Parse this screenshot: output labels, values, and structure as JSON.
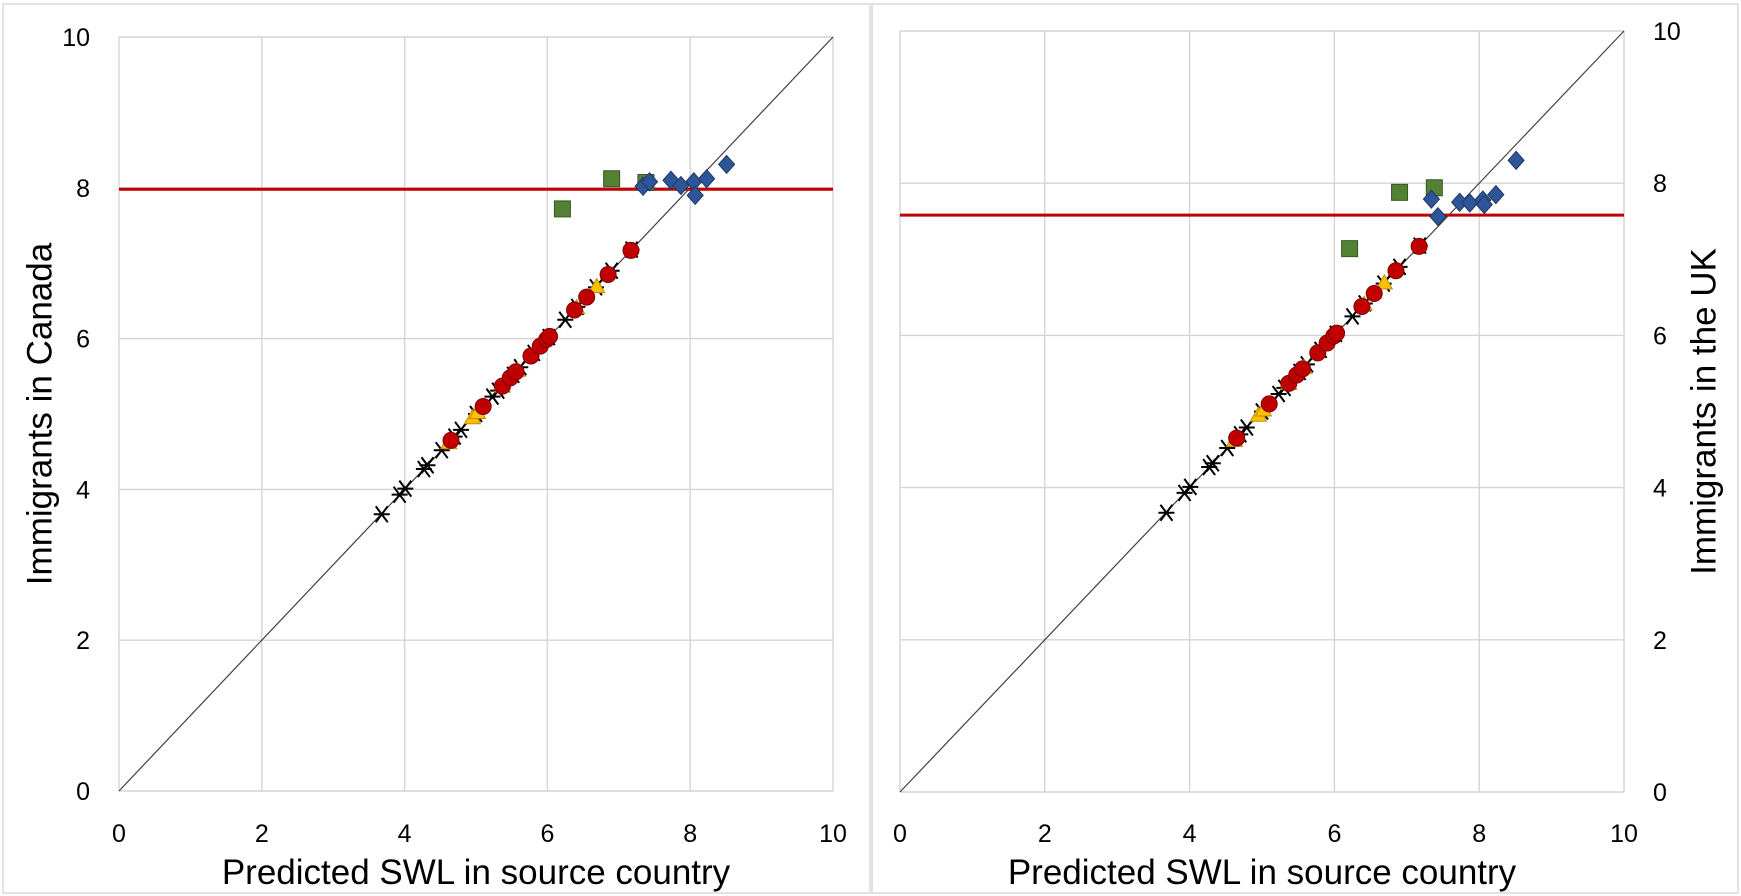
{
  "chart_data": [
    {
      "type": "scatter",
      "title": "",
      "xlabel": "Predicted SWL in source country",
      "ylabel": "Immigrants in Canada",
      "xlim": [
        0,
        10
      ],
      "ylim": [
        0,
        10
      ],
      "xticks": [
        "0",
        "2",
        "4",
        "6",
        "8",
        "10"
      ],
      "yticks": [
        "0",
        "2",
        "4",
        "6",
        "8",
        "10"
      ],
      "grid": true,
      "y_axis_side": "left",
      "legend": "none",
      "reference_line": {
        "y": 7.98,
        "color": "#c00000"
      },
      "diagonal": true,
      "series": [
        {
          "marker": "star",
          "color": "#000000",
          "points": [
            [
              3.68,
              3.67
            ],
            [
              3.93,
              3.93
            ],
            [
              4.01,
              4.01
            ],
            [
              4.27,
              4.27
            ],
            [
              4.32,
              4.32
            ],
            [
              4.52,
              4.52
            ],
            [
              4.7,
              4.7
            ],
            [
              4.79,
              4.79
            ],
            [
              5.0,
              5.0
            ],
            [
              5.23,
              5.23
            ],
            [
              5.31,
              5.31
            ],
            [
              5.52,
              5.52
            ],
            [
              5.62,
              5.62
            ],
            [
              5.81,
              5.81
            ],
            [
              6.02,
              6.02
            ],
            [
              6.25,
              6.25
            ],
            [
              6.42,
              6.42
            ],
            [
              6.68,
              6.68
            ],
            [
              6.9,
              6.9
            ],
            [
              7.18,
              7.18
            ]
          ]
        },
        {
          "marker": "triangle",
          "color": "#ffc000",
          "points": [
            [
              4.62,
              4.62
            ],
            [
              4.95,
              4.95
            ],
            [
              5.02,
              5.02
            ],
            [
              5.37,
              5.37
            ],
            [
              5.58,
              5.58
            ],
            [
              6.41,
              6.41
            ],
            [
              6.69,
              6.69
            ]
          ]
        },
        {
          "marker": "circle",
          "color": "#c00000",
          "points": [
            [
              4.65,
              4.65
            ],
            [
              5.1,
              5.1
            ],
            [
              5.37,
              5.37
            ],
            [
              5.48,
              5.48
            ],
            [
              5.56,
              5.56
            ],
            [
              5.77,
              5.77
            ],
            [
              5.9,
              5.9
            ],
            [
              5.99,
              5.99
            ],
            [
              6.03,
              6.03
            ],
            [
              6.38,
              6.38
            ],
            [
              6.55,
              6.55
            ],
            [
              6.85,
              6.85
            ],
            [
              7.17,
              7.17
            ]
          ]
        },
        {
          "marker": "square",
          "color": "#548235",
          "points": [
            [
              6.21,
              7.72
            ],
            [
              6.9,
              8.12
            ],
            [
              7.38,
              8.07
            ]
          ]
        },
        {
          "marker": "diamond",
          "color": "#2e5597",
          "points": [
            [
              7.34,
              8.02
            ],
            [
              7.43,
              8.08
            ],
            [
              7.73,
              8.1
            ],
            [
              7.87,
              8.03
            ],
            [
              8.05,
              8.08
            ],
            [
              8.07,
              7.9
            ],
            [
              8.23,
              8.12
            ],
            [
              8.51,
              8.31
            ]
          ]
        }
      ]
    },
    {
      "type": "scatter",
      "title": "",
      "xlabel": "Predicted SWL in source country",
      "ylabel": "Immigrants in the UK",
      "xlim": [
        0,
        10
      ],
      "ylim": [
        0,
        10
      ],
      "xticks": [
        "0",
        "2",
        "4",
        "6",
        "8",
        "10"
      ],
      "yticks": [
        "0",
        "2",
        "4",
        "6",
        "8",
        "10"
      ],
      "grid": true,
      "y_axis_side": "right",
      "legend": "none",
      "reference_line": {
        "y": 7.58,
        "color": "#c00000"
      },
      "diagonal": true,
      "series": [
        {
          "marker": "star",
          "color": "#000000",
          "points": [
            [
              3.68,
              3.67
            ],
            [
              3.93,
              3.93
            ],
            [
              4.01,
              4.01
            ],
            [
              4.27,
              4.27
            ],
            [
              4.32,
              4.32
            ],
            [
              4.52,
              4.52
            ],
            [
              4.7,
              4.7
            ],
            [
              4.79,
              4.79
            ],
            [
              5.0,
              5.0
            ],
            [
              5.23,
              5.23
            ],
            [
              5.31,
              5.31
            ],
            [
              5.52,
              5.52
            ],
            [
              5.62,
              5.62
            ],
            [
              5.81,
              5.81
            ],
            [
              6.02,
              6.02
            ],
            [
              6.25,
              6.25
            ],
            [
              6.42,
              6.42
            ],
            [
              6.68,
              6.68
            ],
            [
              6.9,
              6.9
            ],
            [
              7.18,
              7.18
            ]
          ]
        },
        {
          "marker": "triangle",
          "color": "#ffc000",
          "points": [
            [
              4.62,
              4.62
            ],
            [
              4.95,
              4.95
            ],
            [
              5.02,
              5.02
            ],
            [
              5.37,
              5.37
            ],
            [
              5.58,
              5.58
            ],
            [
              6.41,
              6.41
            ],
            [
              6.69,
              6.69
            ]
          ]
        },
        {
          "marker": "circle",
          "color": "#c00000",
          "points": [
            [
              4.65,
              4.65
            ],
            [
              5.1,
              5.1
            ],
            [
              5.37,
              5.37
            ],
            [
              5.48,
              5.48
            ],
            [
              5.56,
              5.56
            ],
            [
              5.77,
              5.77
            ],
            [
              5.9,
              5.9
            ],
            [
              5.99,
              5.99
            ],
            [
              6.03,
              6.03
            ],
            [
              6.38,
              6.38
            ],
            [
              6.55,
              6.55
            ],
            [
              6.85,
              6.85
            ],
            [
              7.17,
              7.17
            ]
          ]
        },
        {
          "marker": "square",
          "color": "#548235",
          "points": [
            [
              6.21,
              7.14
            ],
            [
              6.9,
              7.88
            ],
            [
              7.38,
              7.94
            ]
          ]
        },
        {
          "marker": "diamond",
          "color": "#2e5597",
          "points": [
            [
              7.34,
              7.79
            ],
            [
              7.43,
              7.56
            ],
            [
              7.73,
              7.75
            ],
            [
              7.87,
              7.74
            ],
            [
              8.05,
              7.78
            ],
            [
              8.07,
              7.72
            ],
            [
              8.23,
              7.85
            ],
            [
              8.51,
              8.3
            ]
          ]
        }
      ]
    }
  ]
}
